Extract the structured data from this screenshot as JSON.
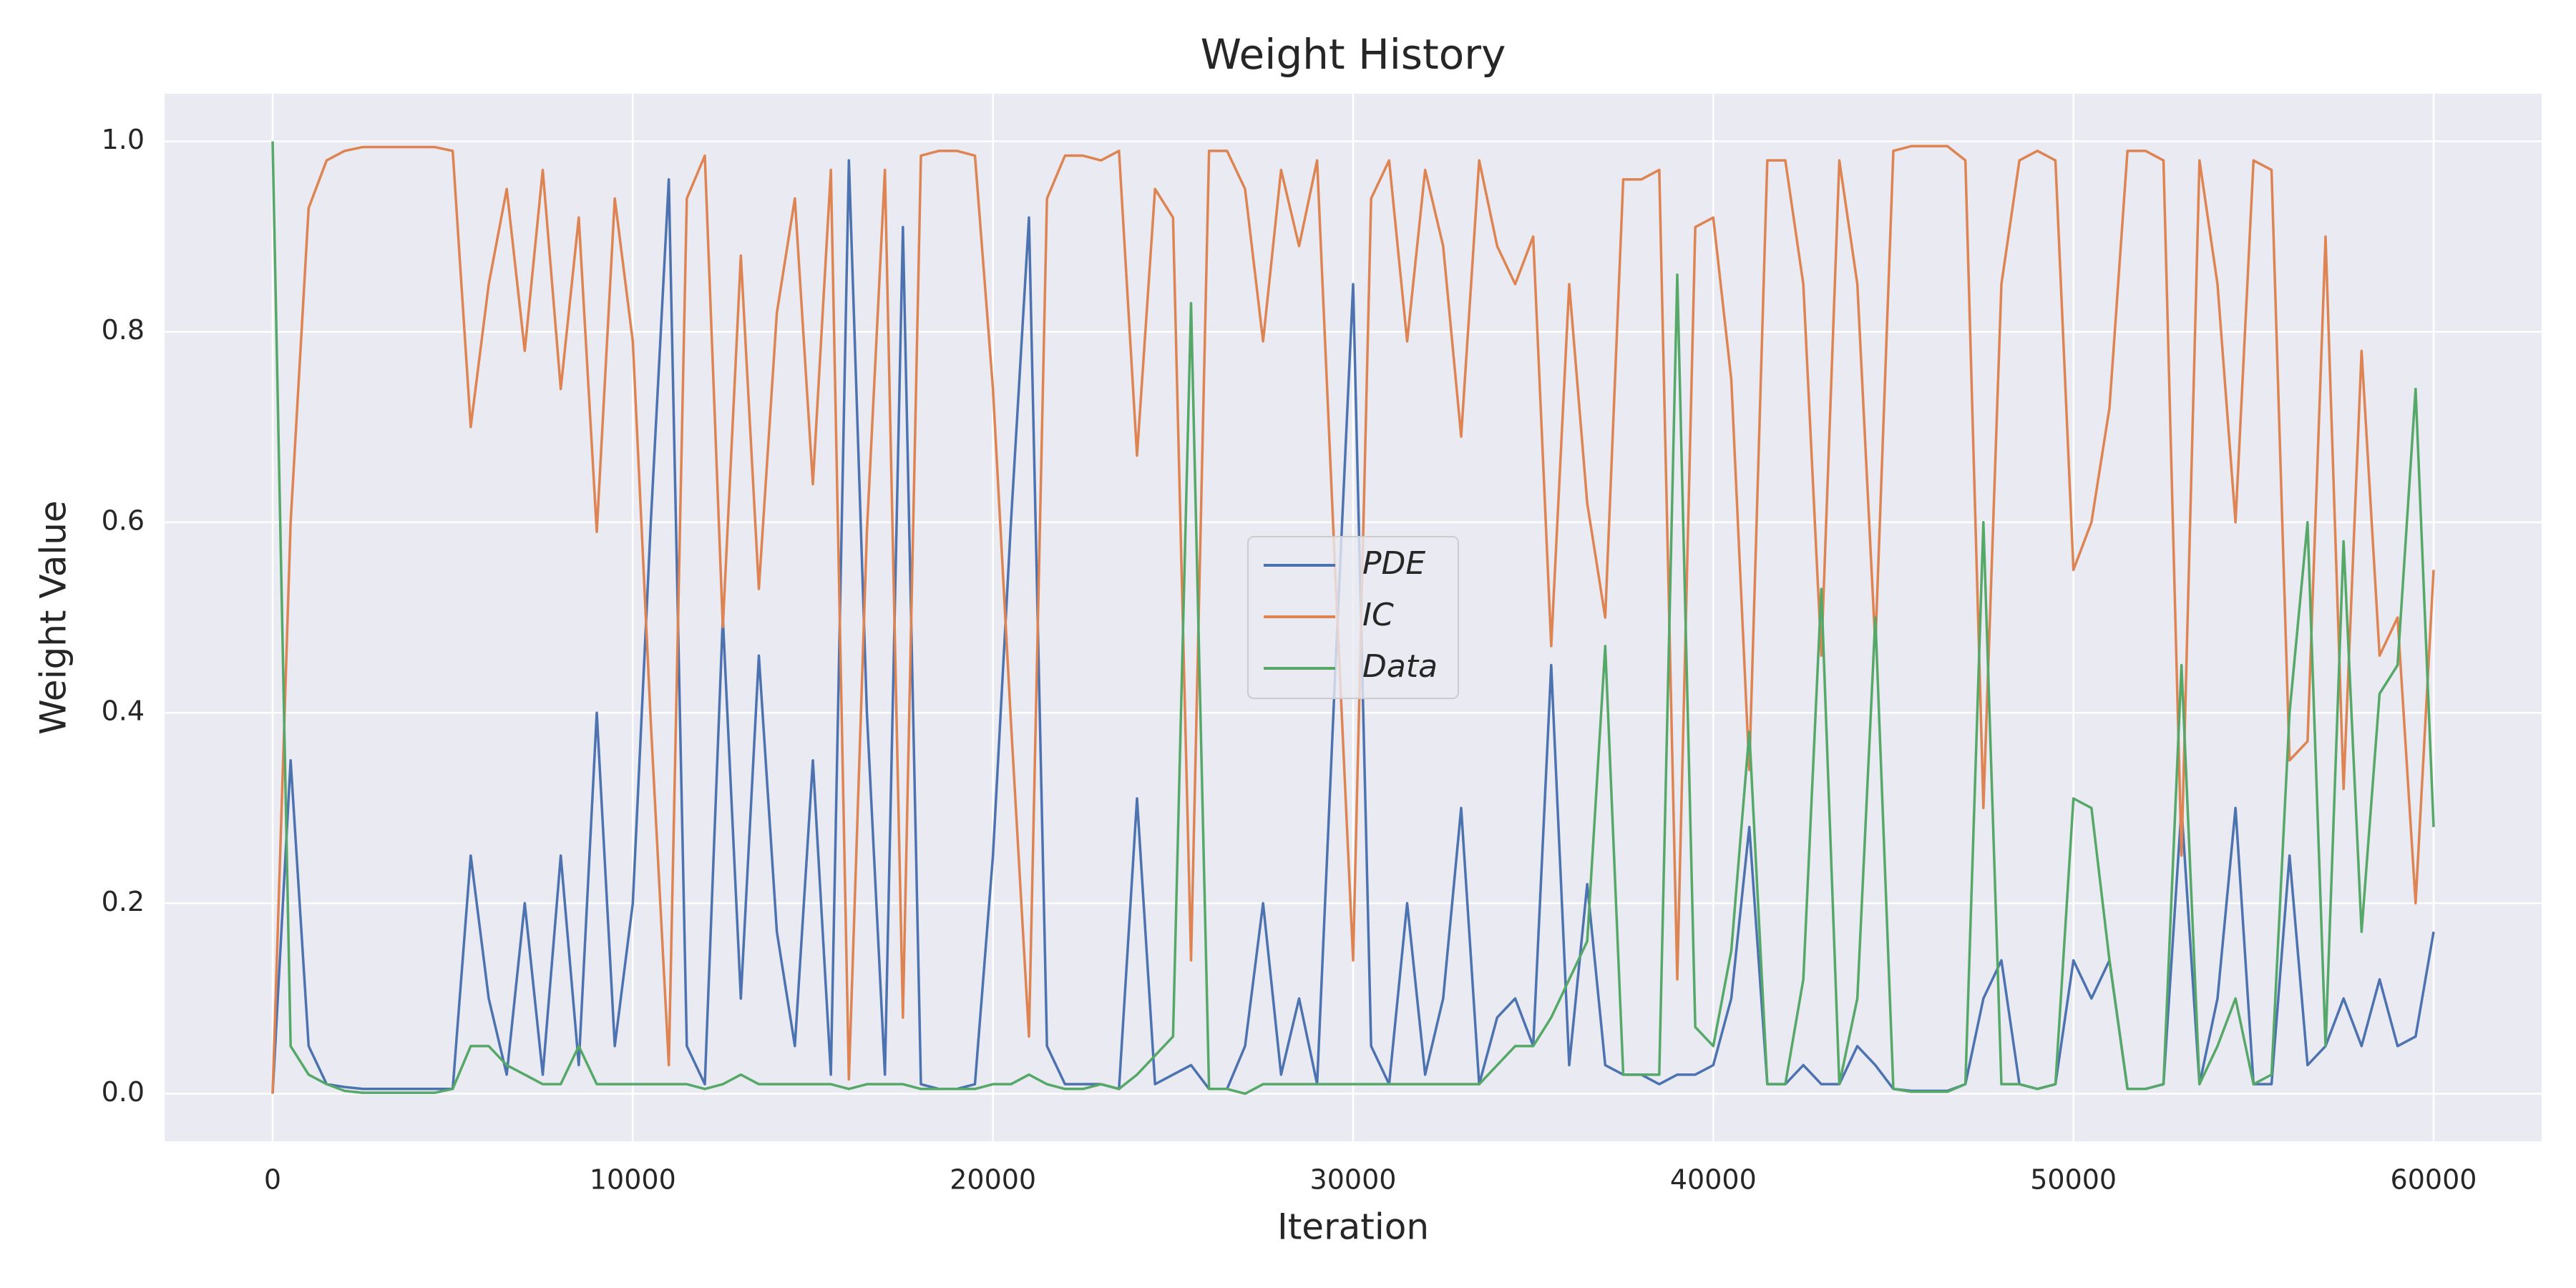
{
  "chart_data": {
    "type": "line",
    "title": "Weight History",
    "x_label": "Iteration",
    "y_label": "Weight Value",
    "x": [
      0,
      500,
      1000,
      1500,
      2000,
      2500,
      3000,
      3500,
      4000,
      4500,
      5000,
      5500,
      6000,
      6500,
      7000,
      7500,
      8000,
      8500,
      9000,
      9500,
      10000,
      10500,
      11000,
      11500,
      12000,
      12500,
      13000,
      13500,
      14000,
      14500,
      15000,
      15500,
      16000,
      16500,
      17000,
      17500,
      18000,
      18500,
      19000,
      19500,
      20000,
      20500,
      21000,
      21500,
      22000,
      22500,
      23000,
      23500,
      24000,
      24500,
      25000,
      25500,
      26000,
      26500,
      27000,
      27500,
      28000,
      28500,
      29000,
      29500,
      30000,
      30500,
      31000,
      31500,
      32000,
      32500,
      33000,
      33500,
      34000,
      34500,
      35000,
      35500,
      36000,
      36500,
      37000,
      37500,
      38000,
      38500,
      39000,
      39500,
      40000,
      40500,
      41000,
      41500,
      42000,
      42500,
      43000,
      43500,
      44000,
      44500,
      45000,
      45500,
      46000,
      46500,
      47000,
      47500,
      48000,
      48500,
      49000,
      49500,
      50000,
      50500,
      51000,
      51500,
      52000,
      52500,
      53000,
      53500,
      54000,
      54500,
      55000,
      55500,
      56000,
      56500,
      57000,
      57500,
      58000,
      58500,
      59000,
      59500,
      60000
    ],
    "series": [
      {
        "name": "PDE",
        "color": "#4c72b0",
        "values": [
          0.0,
          0.35,
          0.05,
          0.01,
          0.007,
          0.005,
          0.005,
          0.005,
          0.005,
          0.005,
          0.005,
          0.25,
          0.1,
          0.02,
          0.2,
          0.02,
          0.25,
          0.03,
          0.4,
          0.05,
          0.2,
          0.6,
          0.96,
          0.05,
          0.01,
          0.5,
          0.1,
          0.46,
          0.17,
          0.05,
          0.35,
          0.02,
          0.98,
          0.4,
          0.02,
          0.91,
          0.01,
          0.005,
          0.005,
          0.01,
          0.25,
          0.6,
          0.92,
          0.05,
          0.01,
          0.01,
          0.01,
          0.005,
          0.31,
          0.01,
          0.02,
          0.03,
          0.005,
          0.005,
          0.05,
          0.2,
          0.02,
          0.1,
          0.01,
          0.44,
          0.85,
          0.05,
          0.01,
          0.2,
          0.02,
          0.1,
          0.3,
          0.01,
          0.08,
          0.1,
          0.05,
          0.45,
          0.03,
          0.22,
          0.03,
          0.02,
          0.02,
          0.01,
          0.02,
          0.02,
          0.03,
          0.1,
          0.28,
          0.01,
          0.01,
          0.03,
          0.01,
          0.01,
          0.05,
          0.03,
          0.005,
          0.003,
          0.003,
          0.003,
          0.01,
          0.1,
          0.14,
          0.01,
          0.005,
          0.01,
          0.14,
          0.1,
          0.14,
          0.005,
          0.005,
          0.01,
          0.3,
          0.01,
          0.1,
          0.3,
          0.01,
          0.01,
          0.25,
          0.03,
          0.05,
          0.1,
          0.05,
          0.12,
          0.05,
          0.06,
          0.17
        ]
      },
      {
        "name": "IC",
        "color": "#dd8452",
        "values": [
          0.0,
          0.6,
          0.93,
          0.98,
          0.99,
          0.994,
          0.994,
          0.994,
          0.994,
          0.994,
          0.99,
          0.7,
          0.85,
          0.95,
          0.78,
          0.97,
          0.74,
          0.92,
          0.59,
          0.94,
          0.79,
          0.39,
          0.03,
          0.94,
          0.985,
          0.49,
          0.88,
          0.53,
          0.82,
          0.94,
          0.64,
          0.97,
          0.015,
          0.59,
          0.97,
          0.08,
          0.985,
          0.99,
          0.99,
          0.985,
          0.74,
          0.39,
          0.06,
          0.94,
          0.985,
          0.985,
          0.98,
          0.99,
          0.67,
          0.95,
          0.92,
          0.14,
          0.99,
          0.99,
          0.95,
          0.79,
          0.97,
          0.89,
          0.98,
          0.55,
          0.14,
          0.94,
          0.98,
          0.79,
          0.97,
          0.89,
          0.69,
          0.98,
          0.89,
          0.85,
          0.9,
          0.47,
          0.85,
          0.62,
          0.5,
          0.96,
          0.96,
          0.97,
          0.12,
          0.91,
          0.92,
          0.75,
          0.34,
          0.98,
          0.98,
          0.85,
          0.46,
          0.98,
          0.85,
          0.47,
          0.99,
          0.995,
          0.995,
          0.995,
          0.98,
          0.3,
          0.85,
          0.98,
          0.99,
          0.98,
          0.55,
          0.6,
          0.72,
          0.99,
          0.99,
          0.98,
          0.25,
          0.98,
          0.85,
          0.6,
          0.98,
          0.97,
          0.35,
          0.37,
          0.9,
          0.32,
          0.78,
          0.46,
          0.5,
          0.2,
          0.55
        ]
      },
      {
        "name": "Data",
        "color": "#55a868",
        "values": [
          1.0,
          0.05,
          0.02,
          0.01,
          0.003,
          0.001,
          0.001,
          0.001,
          0.001,
          0.001,
          0.005,
          0.05,
          0.05,
          0.03,
          0.02,
          0.01,
          0.01,
          0.05,
          0.01,
          0.01,
          0.01,
          0.01,
          0.01,
          0.01,
          0.005,
          0.01,
          0.02,
          0.01,
          0.01,
          0.01,
          0.01,
          0.01,
          0.005,
          0.01,
          0.01,
          0.01,
          0.005,
          0.005,
          0.005,
          0.005,
          0.01,
          0.01,
          0.02,
          0.01,
          0.005,
          0.005,
          0.01,
          0.005,
          0.02,
          0.04,
          0.06,
          0.83,
          0.005,
          0.005,
          0.0,
          0.01,
          0.01,
          0.01,
          0.01,
          0.01,
          0.01,
          0.01,
          0.01,
          0.01,
          0.01,
          0.01,
          0.01,
          0.01,
          0.03,
          0.05,
          0.05,
          0.08,
          0.12,
          0.16,
          0.47,
          0.02,
          0.02,
          0.02,
          0.86,
          0.07,
          0.05,
          0.15,
          0.38,
          0.01,
          0.01,
          0.12,
          0.53,
          0.01,
          0.1,
          0.5,
          0.005,
          0.002,
          0.002,
          0.002,
          0.01,
          0.6,
          0.01,
          0.01,
          0.005,
          0.01,
          0.31,
          0.3,
          0.14,
          0.005,
          0.005,
          0.01,
          0.45,
          0.01,
          0.05,
          0.1,
          0.01,
          0.02,
          0.4,
          0.6,
          0.05,
          0.58,
          0.17,
          0.42,
          0.45,
          0.74,
          0.28
        ]
      }
    ],
    "xlim": [
      -3000,
      63000
    ],
    "ylim": [
      -0.05,
      1.05
    ],
    "xticks": [
      0,
      10000,
      20000,
      30000,
      40000,
      50000,
      60000
    ],
    "yticks": [
      {
        "value": 0,
        "label": "0.0"
      },
      0.2,
      0.4,
      0.6,
      0.8,
      {
        "value": 1,
        "label": "1.0"
      }
    ],
    "grid": true,
    "legend": "center"
  }
}
